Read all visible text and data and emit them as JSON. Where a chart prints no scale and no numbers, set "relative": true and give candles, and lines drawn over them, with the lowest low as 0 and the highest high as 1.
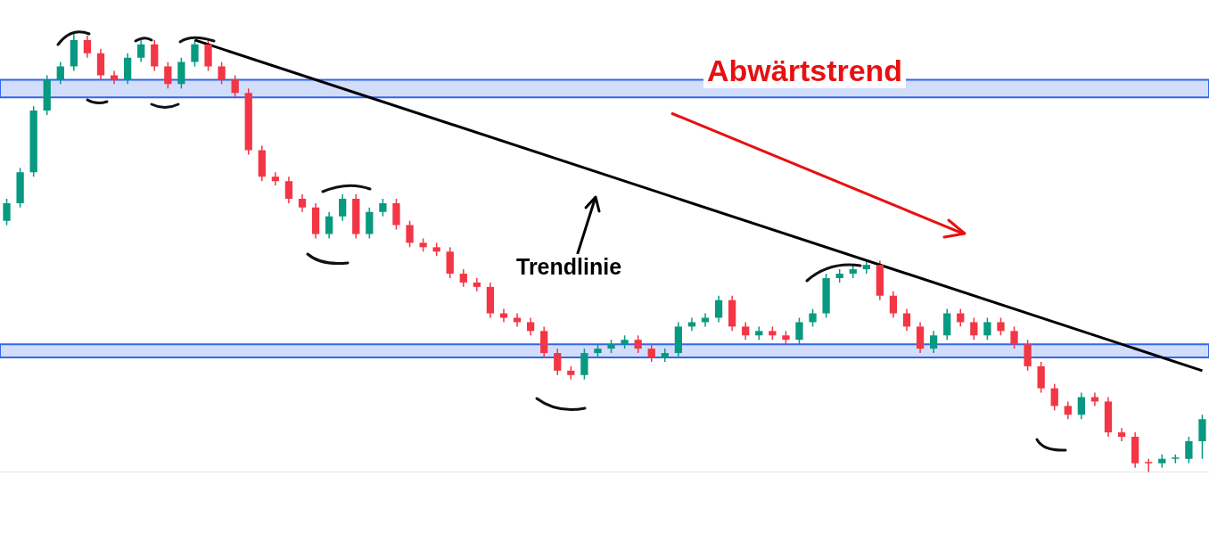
{
  "chart_data": {
    "type": "candlestick",
    "relative": true,
    "annotations": [
      "Abwärtstrend",
      "Trendlinie"
    ],
    "categories": [
      null,
      null,
      null,
      null,
      null,
      null,
      null,
      null,
      null,
      null,
      null,
      null,
      null,
      null,
      null,
      null,
      null,
      null,
      null,
      null,
      null,
      null,
      null,
      null,
      null,
      null,
      null,
      null,
      null,
      null,
      null,
      null,
      null,
      null,
      null,
      null,
      null,
      null,
      null,
      null,
      null,
      null,
      null,
      null,
      null,
      null,
      null,
      null,
      null,
      null,
      null,
      null,
      null,
      null,
      null,
      null,
      null,
      null,
      null,
      null,
      null,
      null,
      null,
      null,
      null,
      null,
      null,
      null,
      null,
      null,
      null,
      null,
      null,
      null,
      null,
      null,
      null,
      null,
      null,
      null,
      null,
      null,
      null,
      null,
      null,
      null,
      null,
      null,
      null,
      null
    ],
    "colors": [
      "#089981",
      "#089981",
      "#089981",
      "#089981",
      "#089981",
      "#089981",
      "#f23645",
      "#f23645",
      "#f23645",
      "#089981",
      "#089981",
      "#f23645",
      "#f23645",
      "#089981",
      "#089981",
      "#f23645",
      "#f23645",
      "#f23645",
      "#f23645",
      "#f23645",
      "#f23645",
      "#f23645",
      "#f23645",
      "#f23645",
      "#089981",
      "#089981",
      "#f23645",
      "#089981",
      "#089981",
      "#f23645",
      "#f23645",
      "#f23645",
      "#f23645",
      "#f23645",
      "#f23645",
      "#f23645",
      "#f23645",
      "#f23645",
      "#f23645",
      "#f23645",
      "#f23645",
      "#f23645",
      "#f23645",
      "#089981",
      "#089981",
      "#089981",
      "#089981",
      "#f23645",
      "#f23645",
      "#089981",
      "#089981",
      "#089981",
      "#089981",
      "#089981",
      "#f23645",
      "#f23645",
      "#089981",
      "#f23645",
      "#f23645",
      "#089981",
      "#089981",
      "#089981",
      "#089981",
      "#089981",
      "#089981",
      "#f23645",
      "#f23645",
      "#f23645",
      "#f23645",
      "#089981",
      "#089981",
      "#f23645",
      "#f23645",
      "#089981",
      "#f23645",
      "#f23645",
      "#f23645",
      "#f23645",
      "#f23645",
      "#f23645",
      "#089981",
      "#f23645",
      "#f23645",
      "#f23645",
      "#f23645",
      "#f23645",
      "#089981",
      "#089981",
      "#089981",
      "#089981"
    ],
    "ohlc": [
      [
        0.57,
        0.62,
        0.56,
        0.61
      ],
      [
        0.61,
        0.69,
        0.6,
        0.68
      ],
      [
        0.68,
        0.83,
        0.67,
        0.82
      ],
      [
        0.82,
        0.9,
        0.81,
        0.89
      ],
      [
        0.89,
        0.93,
        0.88,
        0.92
      ],
      [
        0.92,
        1.0,
        0.91,
        0.98
      ],
      [
        0.98,
        0.99,
        0.94,
        0.95
      ],
      [
        0.95,
        0.96,
        0.89,
        0.9
      ],
      [
        0.9,
        0.91,
        0.88,
        0.89
      ],
      [
        0.89,
        0.95,
        0.88,
        0.94
      ],
      [
        0.94,
        0.98,
        0.93,
        0.97
      ],
      [
        0.97,
        0.98,
        0.91,
        0.92
      ],
      [
        0.92,
        0.93,
        0.87,
        0.88
      ],
      [
        0.88,
        0.94,
        0.87,
        0.93
      ],
      [
        0.93,
        0.98,
        0.92,
        0.97
      ],
      [
        0.97,
        0.98,
        0.91,
        0.92
      ],
      [
        0.92,
        0.93,
        0.88,
        0.89
      ],
      [
        0.89,
        0.9,
        0.85,
        0.86
      ],
      [
        0.86,
        0.87,
        0.72,
        0.73
      ],
      [
        0.73,
        0.74,
        0.66,
        0.67
      ],
      [
        0.67,
        0.68,
        0.65,
        0.66
      ],
      [
        0.66,
        0.67,
        0.61,
        0.62
      ],
      [
        0.62,
        0.63,
        0.59,
        0.6
      ],
      [
        0.6,
        0.61,
        0.53,
        0.54
      ],
      [
        0.54,
        0.59,
        0.53,
        0.58
      ],
      [
        0.58,
        0.63,
        0.57,
        0.62
      ],
      [
        0.62,
        0.63,
        0.53,
        0.54
      ],
      [
        0.54,
        0.6,
        0.53,
        0.59
      ],
      [
        0.59,
        0.62,
        0.58,
        0.61
      ],
      [
        0.61,
        0.62,
        0.55,
        0.56
      ],
      [
        0.56,
        0.57,
        0.51,
        0.52
      ],
      [
        0.52,
        0.53,
        0.5,
        0.51
      ],
      [
        0.51,
        0.52,
        0.49,
        0.5
      ],
      [
        0.5,
        0.51,
        0.44,
        0.45
      ],
      [
        0.45,
        0.46,
        0.42,
        0.43
      ],
      [
        0.43,
        0.44,
        0.41,
        0.42
      ],
      [
        0.42,
        0.43,
        0.35,
        0.36
      ],
      [
        0.36,
        0.37,
        0.34,
        0.35
      ],
      [
        0.35,
        0.36,
        0.33,
        0.34
      ],
      [
        0.34,
        0.35,
        0.31,
        0.32
      ],
      [
        0.32,
        0.33,
        0.26,
        0.27
      ],
      [
        0.27,
        0.28,
        0.22,
        0.23
      ],
      [
        0.23,
        0.24,
        0.21,
        0.22
      ],
      [
        0.22,
        0.28,
        0.21,
        0.27
      ],
      [
        0.27,
        0.29,
        0.26,
        0.28
      ],
      [
        0.28,
        0.3,
        0.27,
        0.29
      ],
      [
        0.29,
        0.31,
        0.28,
        0.3
      ],
      [
        0.3,
        0.31,
        0.27,
        0.28
      ],
      [
        0.28,
        0.29,
        0.25,
        0.26
      ],
      [
        0.26,
        0.28,
        0.25,
        0.27
      ],
      [
        0.27,
        0.34,
        0.26,
        0.33
      ],
      [
        0.33,
        0.35,
        0.32,
        0.34
      ],
      [
        0.34,
        0.36,
        0.33,
        0.35
      ],
      [
        0.35,
        0.4,
        0.34,
        0.39
      ],
      [
        0.39,
        0.4,
        0.32,
        0.33
      ],
      [
        0.33,
        0.34,
        0.3,
        0.31
      ],
      [
        0.31,
        0.33,
        0.3,
        0.32
      ],
      [
        0.32,
        0.33,
        0.3,
        0.31
      ],
      [
        0.31,
        0.32,
        0.29,
        0.3
      ],
      [
        0.3,
        0.35,
        0.29,
        0.34
      ],
      [
        0.34,
        0.37,
        0.33,
        0.36
      ],
      [
        0.36,
        0.45,
        0.35,
        0.44
      ],
      [
        0.44,
        0.46,
        0.43,
        0.45
      ],
      [
        0.45,
        0.47,
        0.44,
        0.46
      ],
      [
        0.46,
        0.48,
        0.45,
        0.47
      ],
      [
        0.47,
        0.48,
        0.39,
        0.4
      ],
      [
        0.4,
        0.41,
        0.35,
        0.36
      ],
      [
        0.36,
        0.37,
        0.32,
        0.33
      ],
      [
        0.33,
        0.34,
        0.27,
        0.28
      ],
      [
        0.28,
        0.32,
        0.27,
        0.31
      ],
      [
        0.31,
        0.37,
        0.3,
        0.36
      ],
      [
        0.36,
        0.37,
        0.33,
        0.34
      ],
      [
        0.34,
        0.35,
        0.3,
        0.31
      ],
      [
        0.31,
        0.35,
        0.3,
        0.34
      ],
      [
        0.34,
        0.35,
        0.31,
        0.32
      ],
      [
        0.32,
        0.33,
        0.28,
        0.29
      ],
      [
        0.29,
        0.3,
        0.23,
        0.24
      ],
      [
        0.24,
        0.25,
        0.18,
        0.19
      ],
      [
        0.19,
        0.2,
        0.14,
        0.15
      ],
      [
        0.15,
        0.16,
        0.12,
        0.13
      ],
      [
        0.13,
        0.18,
        0.12,
        0.17
      ],
      [
        0.17,
        0.18,
        0.15,
        0.16
      ],
      [
        0.16,
        0.17,
        0.08,
        0.09
      ],
      [
        0.09,
        0.1,
        0.07,
        0.08
      ],
      [
        0.08,
        0.09,
        0.01,
        0.02
      ],
      [
        0.02,
        0.03,
        0.0,
        0.02
      ],
      [
        0.02,
        0.04,
        0.01,
        0.03
      ],
      [
        0.03,
        0.04,
        0.02,
        0.03
      ],
      [
        0.03,
        0.08,
        0.02,
        0.07
      ],
      [
        0.07,
        0.13,
        0.03,
        0.12
      ]
    ],
    "series": [
      {
        "type": "line",
        "color": "#000000",
        "values": [
          null,
          null,
          null,
          null,
          null,
          null,
          null,
          null,
          null,
          null,
          null,
          null,
          null,
          null,
          0.98,
          null,
          null,
          null,
          null,
          null,
          null,
          null,
          null,
          null,
          null,
          null,
          null,
          null,
          null,
          null,
          null,
          null,
          null,
          null,
          null,
          null,
          null,
          null,
          null,
          null,
          null,
          null,
          null,
          null,
          null,
          null,
          null,
          null,
          null,
          null,
          null,
          null,
          null,
          null,
          null,
          null,
          null,
          null,
          null,
          null,
          null,
          null,
          null,
          null,
          null,
          null,
          null,
          null,
          null,
          null,
          null,
          null,
          null,
          null,
          null,
          null,
          null,
          null,
          null,
          null,
          null,
          null,
          null,
          null,
          null,
          null,
          null,
          null,
          null,
          0.23
        ]
      }
    ],
    "bands": [
      {
        "axis": "y",
        "from": 0.85,
        "to": 0.89,
        "color": "#3366f0"
      },
      {
        "axis": "y",
        "from": 0.26,
        "to": 0.29,
        "color": "#3366f0"
      }
    ]
  }
}
